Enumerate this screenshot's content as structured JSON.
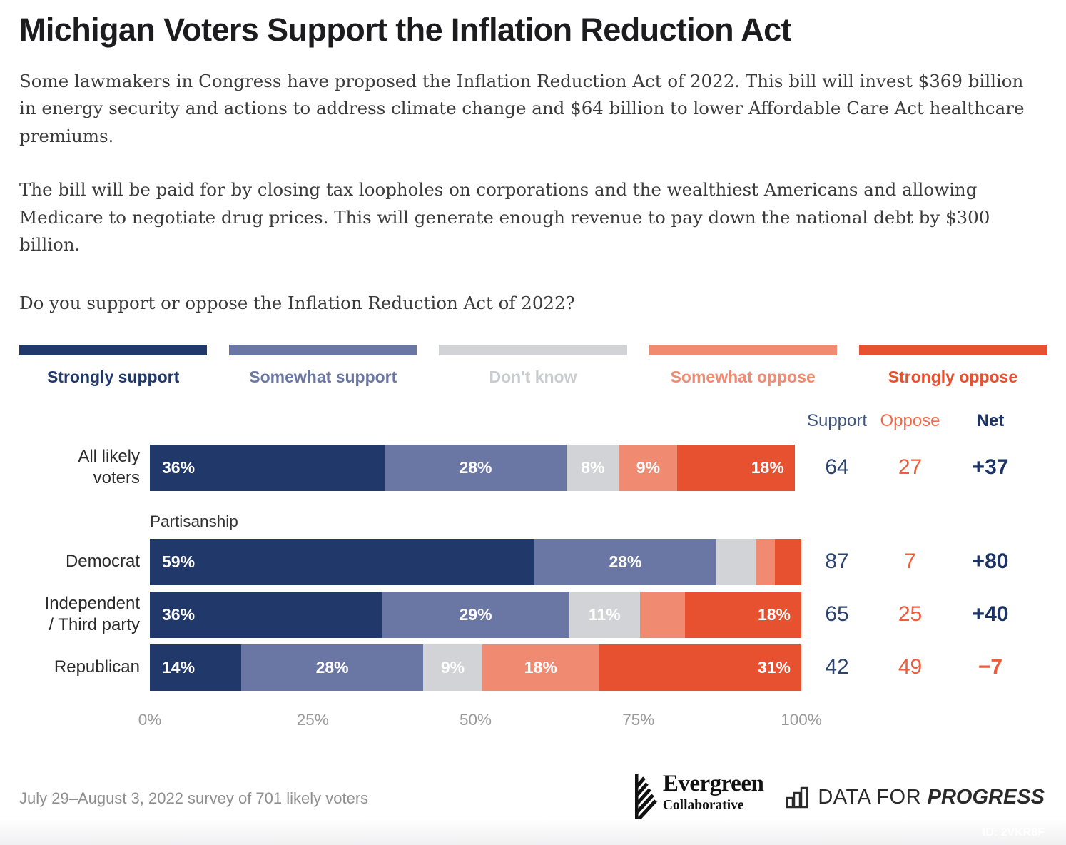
{
  "title": "Michigan Voters Support the Inflation Reduction Act",
  "paragraphs": {
    "p1": "Some lawmakers in Congress have proposed the Inflation Reduction Act of 2022. This bill will invest $369 billion in energy security and actions to address climate change and $64 billion to lower Affordable Care Act healthcare premiums.",
    "p2": "The bill will be paid for by closing tax loopholes on corporations and the wealthiest Americans and allowing Medicare to negotiate drug prices. This will generate enough revenue to pay down the national debt by $300 billion.",
    "question": "Do you support or oppose the Inflation Reduction Act of 2022?"
  },
  "legend": {
    "items": [
      {
        "key": "strongly-support",
        "label": "Strongly support",
        "color": "#21386b"
      },
      {
        "key": "somewhat-support",
        "label": "Somewhat support",
        "color": "#6a76a4"
      },
      {
        "key": "dont-know",
        "label": "Don't know",
        "color": "#d1d3d6",
        "label_color": "#c9cbce"
      },
      {
        "key": "somewhat-oppose",
        "label": "Somewhat oppose",
        "color": "#f08a70"
      },
      {
        "key": "strongly-oppose",
        "label": "Strongly oppose",
        "color": "#e8512f"
      }
    ]
  },
  "table_headers": {
    "support": "Support",
    "oppose": "Oppose",
    "net": "Net"
  },
  "section_label": "Partisanship",
  "chart": {
    "rows": [
      {
        "label": "All likely\nvoters",
        "segments": [
          {
            "value": 36,
            "label": "36%"
          },
          {
            "value": 28,
            "label": "28%"
          },
          {
            "value": 8,
            "label": "8%"
          },
          {
            "value": 9,
            "label": "9%"
          },
          {
            "value": 18,
            "label": "18%"
          }
        ],
        "support": "64",
        "oppose": "27",
        "net": "+37"
      },
      {
        "label": "Democrat",
        "segments": [
          {
            "value": 59,
            "label": "59%"
          },
          {
            "value": 28,
            "label": "28%"
          },
          {
            "value": 6,
            "label": ""
          },
          {
            "value": 3,
            "label": ""
          },
          {
            "value": 4,
            "label": ""
          }
        ],
        "support": "87",
        "oppose": "7",
        "net": "+80"
      },
      {
        "label": "Independent\n/ Third party",
        "segments": [
          {
            "value": 36,
            "label": "36%"
          },
          {
            "value": 29,
            "label": "29%"
          },
          {
            "value": 11,
            "label": "11%"
          },
          {
            "value": 7,
            "label": ""
          },
          {
            "value": 18,
            "label": "18%"
          }
        ],
        "support": "65",
        "oppose": "25",
        "net": "+40"
      },
      {
        "label": "Republican",
        "segments": [
          {
            "value": 14,
            "label": "14%"
          },
          {
            "value": 28,
            "label": "28%"
          },
          {
            "value": 9,
            "label": "9%"
          },
          {
            "value": 18,
            "label": "18%"
          },
          {
            "value": 31,
            "label": "31%"
          }
        ],
        "support": "42",
        "oppose": "49",
        "net": "−7"
      }
    ],
    "axis_ticks": [
      "0%",
      "25%",
      "50%",
      "75%",
      "100%"
    ]
  },
  "chart_data": {
    "type": "bar",
    "subtype": "horizontal-stacked",
    "title": "Do you support or oppose the Inflation Reduction Act of 2022?",
    "categories": [
      "All likely voters",
      "Democrat",
      "Independent / Third party",
      "Republican"
    ],
    "series": [
      {
        "name": "Strongly support",
        "color": "#21386b",
        "values": [
          36,
          59,
          36,
          14
        ]
      },
      {
        "name": "Somewhat support",
        "color": "#6a76a4",
        "values": [
          28,
          28,
          29,
          28
        ]
      },
      {
        "name": "Don't know",
        "color": "#d1d3d6",
        "values": [
          8,
          6,
          11,
          9
        ]
      },
      {
        "name": "Somewhat oppose",
        "color": "#f08a70",
        "values": [
          9,
          3,
          7,
          18
        ]
      },
      {
        "name": "Strongly oppose",
        "color": "#e8512f",
        "values": [
          18,
          4,
          18,
          31
        ]
      }
    ],
    "summary_columns": {
      "support": [
        64,
        87,
        65,
        42
      ],
      "oppose": [
        27,
        7,
        25,
        49
      ],
      "net": [
        "+37",
        "+80",
        "+40",
        "−7"
      ]
    },
    "xlim": [
      0,
      100
    ],
    "x_ticks": [
      "0%",
      "25%",
      "50%",
      "75%",
      "100%"
    ],
    "legend_position": "top",
    "grid": false,
    "group_note": "Partisanship grouping applies to rows 2-4"
  },
  "footnote": "July 29–August 3, 2022 survey of 701 likely voters",
  "logos": {
    "evergreen_name": "Evergreen",
    "evergreen_sub": "Collaborative",
    "dfp_light": "DATA FOR",
    "dfp_bold": "PROGRESS"
  },
  "id_tag": "ID: 2VKR8F",
  "colors": {
    "support_number": "#2c4472",
    "oppose_number": "#ee5c3c",
    "net_number": "#1d3365",
    "net_negative": "#ee5c3c",
    "axis_text": "#9a9a9a",
    "footnote_text": "#8f8f8f"
  }
}
